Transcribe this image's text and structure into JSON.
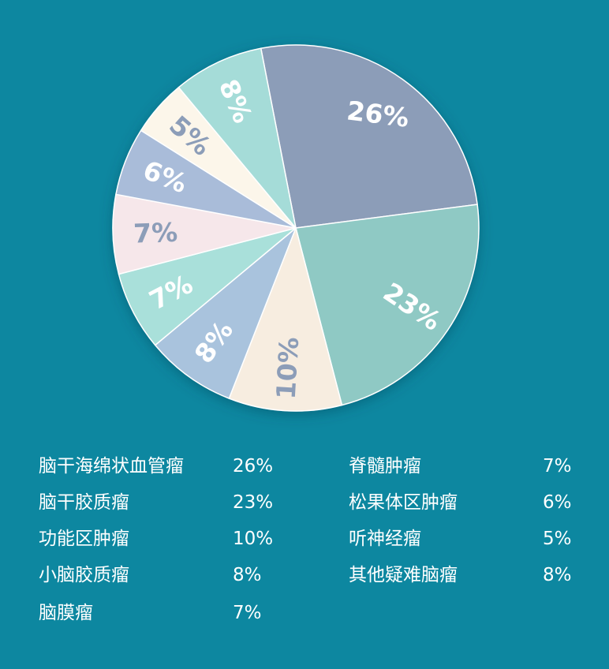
{
  "chart_data": {
    "type": "pie",
    "categories": [
      "脑干海绵状血管瘤",
      "脑干胶质瘤",
      "功能区肿瘤",
      "小脑胶质瘤",
      "脑膜瘤",
      "脊髓肿瘤",
      "松果体区肿瘤",
      "听神经瘤",
      "其他疑难脑瘤"
    ],
    "values": [
      26,
      23,
      10,
      8,
      7,
      7,
      6,
      5,
      8
    ],
    "value_labels": [
      "26%",
      "23%",
      "10%",
      "8%",
      "7%",
      "7%",
      "6%",
      "5%",
      "8%"
    ],
    "colors": [
      "#8c9db8",
      "#8fc9c4",
      "#f7ede0",
      "#a9c3dd",
      "#a9e0da",
      "#f6e7ea",
      "#a9bcd9",
      "#fcf6ea",
      "#a5dcd8"
    ],
    "label_colors": [
      "#ffffff",
      "#ffffff",
      "#8c9db8",
      "#ffffff",
      "#ffffff",
      "#8c9db8",
      "#ffffff",
      "#8c9db8",
      "#ffffff"
    ],
    "legend_placement": "bottom"
  },
  "legend": {
    "left": [
      {
        "name": "脑干海绵状血管瘤",
        "value": "26%"
      },
      {
        "name": "脑干胶质瘤",
        "value": "23%"
      },
      {
        "name": "功能区肿瘤",
        "value": "10%"
      },
      {
        "name": "小脑胶质瘤",
        "value": "8%"
      },
      {
        "name": "脑膜瘤",
        "value": "7%"
      }
    ],
    "right": [
      {
        "name": "脊髓肿瘤",
        "value": "7%"
      },
      {
        "name": "松果体区肿瘤",
        "value": "6%"
      },
      {
        "name": "听神经瘤",
        "value": "5%"
      },
      {
        "name": "其他疑难脑瘤",
        "value": "8%"
      }
    ]
  }
}
